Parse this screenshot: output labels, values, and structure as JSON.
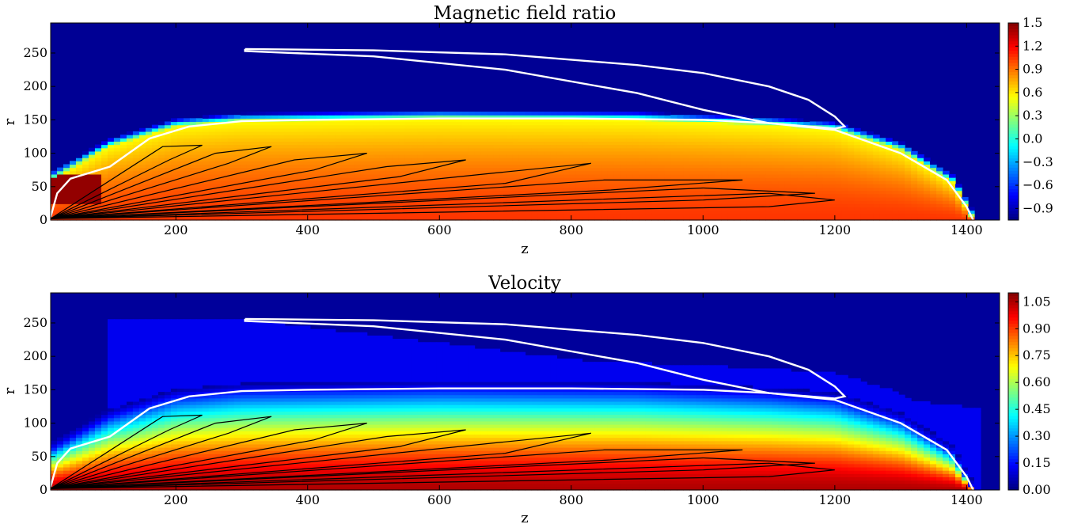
{
  "chart_data": [
    {
      "type": "heatmap",
      "title": "Magnetic field ratio",
      "xlabel": "z",
      "ylabel": "r",
      "xlim": [
        10,
        1450
      ],
      "ylim": [
        0,
        295
      ],
      "xticks": [
        200,
        400,
        600,
        800,
        1000,
        1200,
        1400
      ],
      "yticks": [
        0,
        50,
        100,
        150,
        200,
        250
      ],
      "colormap": "jet",
      "colorbar": {
        "min": -1.05,
        "max": 1.5,
        "ticks": [
          "1.5",
          "1.2",
          "0.9",
          "0.6",
          "0.3",
          "0.0",
          "−0.3",
          "−0.6",
          "−0.9"
        ],
        "tick_values": [
          1.5,
          1.2,
          0.9,
          0.6,
          0.3,
          0.0,
          -0.3,
          -0.6,
          -0.9
        ]
      },
      "field": {
        "background_value": -1.0,
        "core_value_axis": 1.05,
        "core_value_edge": 0.55,
        "hotspot_value": 1.45,
        "jet_radius": [
          [
            10,
            60
          ],
          [
            100,
            110
          ],
          [
            200,
            140
          ],
          [
            300,
            148
          ],
          [
            600,
            152
          ],
          [
            900,
            150
          ],
          [
            1100,
            142
          ],
          [
            1200,
            135
          ],
          [
            1300,
            105
          ],
          [
            1380,
            55
          ],
          [
            1410,
            0
          ]
        ]
      },
      "contours_white": [
        {
          "name": "outer",
          "points": [
            [
              10,
              5
            ],
            [
              20,
              40
            ],
            [
              40,
              62
            ],
            [
              100,
              80
            ],
            [
              160,
              122
            ],
            [
              220,
              140
            ],
            [
              300,
              148
            ],
            [
              400,
              150
            ],
            [
              600,
              152
            ],
            [
              800,
              152
            ],
            [
              1000,
              150
            ],
            [
              1100,
              145
            ],
            [
              1200,
              135
            ],
            [
              1300,
              100
            ],
            [
              1370,
              60
            ],
            [
              1400,
              20
            ],
            [
              1410,
              0
            ]
          ]
        },
        {
          "name": "upper-loop",
          "points": [
            [
              305,
              256
            ],
            [
              500,
              254
            ],
            [
              700,
              248
            ],
            [
              900,
              232
            ],
            [
              1000,
              220
            ],
            [
              1100,
              200
            ],
            [
              1160,
              180
            ],
            [
              1200,
              155
            ],
            [
              1215,
              140
            ],
            [
              1200,
              137
            ],
            [
              1100,
              145
            ],
            [
              1000,
              165
            ],
            [
              900,
              190
            ],
            [
              700,
              225
            ],
            [
              500,
              245
            ],
            [
              305,
              253
            ],
            [
              305,
              256
            ]
          ]
        }
      ],
      "contours_black": [
        {
          "points": [
            [
              10,
              2
            ],
            [
              180,
              110
            ],
            [
              240,
              112
            ],
            [
              190,
              90
            ],
            [
              10,
              2
            ]
          ]
        },
        {
          "points": [
            [
              10,
              2
            ],
            [
              260,
              100
            ],
            [
              345,
              110
            ],
            [
              280,
              85
            ],
            [
              10,
              2
            ]
          ]
        },
        {
          "points": [
            [
              10,
              2
            ],
            [
              380,
              90
            ],
            [
              490,
              100
            ],
            [
              410,
              75
            ],
            [
              10,
              2
            ]
          ]
        },
        {
          "points": [
            [
              10,
              2
            ],
            [
              520,
              80
            ],
            [
              640,
              90
            ],
            [
              540,
              65
            ],
            [
              10,
              2
            ]
          ]
        },
        {
          "points": [
            [
              10,
              2
            ],
            [
              680,
              70
            ],
            [
              830,
              85
            ],
            [
              700,
              55
            ],
            [
              10,
              2
            ]
          ]
        },
        {
          "points": [
            [
              10,
              2
            ],
            [
              850,
              60
            ],
            [
              1060,
              60
            ],
            [
              860,
              45
            ],
            [
              10,
              2
            ]
          ]
        },
        {
          "points": [
            [
              10,
              2
            ],
            [
              1000,
              48
            ],
            [
              1170,
              40
            ],
            [
              1000,
              30
            ],
            [
              10,
              2
            ]
          ]
        },
        {
          "points": [
            [
              10,
              2
            ],
            [
              1100,
              40
            ],
            [
              1200,
              30
            ],
            [
              1100,
              20
            ],
            [
              10,
              2
            ]
          ]
        }
      ]
    },
    {
      "type": "heatmap",
      "title": "Velocity",
      "xlabel": "z",
      "ylabel": "r",
      "xlim": [
        10,
        1450
      ],
      "ylim": [
        0,
        295
      ],
      "xticks": [
        200,
        400,
        600,
        800,
        1000,
        1200,
        1400
      ],
      "yticks": [
        0,
        50,
        100,
        150,
        200,
        250
      ],
      "colormap": "jet",
      "colorbar": {
        "min": 0.0,
        "max": 1.1,
        "ticks": [
          "1.05",
          "0.90",
          "0.75",
          "0.60",
          "0.45",
          "0.30",
          "0.15",
          "0.00"
        ],
        "tick_values": [
          1.05,
          0.9,
          0.75,
          0.6,
          0.45,
          0.3,
          0.15,
          0.0
        ]
      },
      "field": {
        "background_value": 0.03,
        "halo_value": 0.12,
        "core_value_axis": 1.05,
        "core_value_edge": 0.15,
        "jet_radius": [
          [
            10,
            60
          ],
          [
            100,
            110
          ],
          [
            200,
            140
          ],
          [
            300,
            148
          ],
          [
            600,
            152
          ],
          [
            900,
            150
          ],
          [
            1100,
            142
          ],
          [
            1200,
            135
          ],
          [
            1300,
            105
          ],
          [
            1380,
            55
          ],
          [
            1410,
            0
          ]
        ]
      },
      "contours_white": [
        {
          "name": "outer",
          "points": [
            [
              10,
              5
            ],
            [
              20,
              40
            ],
            [
              40,
              62
            ],
            [
              100,
              80
            ],
            [
              160,
              122
            ],
            [
              220,
              140
            ],
            [
              300,
              148
            ],
            [
              400,
              150
            ],
            [
              600,
              152
            ],
            [
              800,
              152
            ],
            [
              1000,
              150
            ],
            [
              1100,
              145
            ],
            [
              1200,
              135
            ],
            [
              1300,
              100
            ],
            [
              1370,
              60
            ],
            [
              1400,
              20
            ],
            [
              1410,
              0
            ]
          ]
        },
        {
          "name": "upper-loop",
          "points": [
            [
              305,
              256
            ],
            [
              500,
              254
            ],
            [
              700,
              248
            ],
            [
              900,
              232
            ],
            [
              1000,
              220
            ],
            [
              1100,
              200
            ],
            [
              1160,
              180
            ],
            [
              1200,
              155
            ],
            [
              1215,
              140
            ],
            [
              1200,
              137
            ],
            [
              1100,
              145
            ],
            [
              1000,
              165
            ],
            [
              900,
              190
            ],
            [
              700,
              225
            ],
            [
              500,
              245
            ],
            [
              305,
              253
            ],
            [
              305,
              256
            ]
          ]
        }
      ],
      "contours_black": [
        {
          "points": [
            [
              10,
              2
            ],
            [
              180,
              110
            ],
            [
              240,
              112
            ],
            [
              190,
              90
            ],
            [
              10,
              2
            ]
          ]
        },
        {
          "points": [
            [
              10,
              2
            ],
            [
              260,
              100
            ],
            [
              345,
              110
            ],
            [
              280,
              85
            ],
            [
              10,
              2
            ]
          ]
        },
        {
          "points": [
            [
              10,
              2
            ],
            [
              380,
              90
            ],
            [
              490,
              100
            ],
            [
              410,
              75
            ],
            [
              10,
              2
            ]
          ]
        },
        {
          "points": [
            [
              10,
              2
            ],
            [
              520,
              80
            ],
            [
              640,
              90
            ],
            [
              540,
              65
            ],
            [
              10,
              2
            ]
          ]
        },
        {
          "points": [
            [
              10,
              2
            ],
            [
              680,
              70
            ],
            [
              830,
              85
            ],
            [
              700,
              55
            ],
            [
              10,
              2
            ]
          ]
        },
        {
          "points": [
            [
              10,
              2
            ],
            [
              850,
              60
            ],
            [
              1060,
              60
            ],
            [
              860,
              45
            ],
            [
              10,
              2
            ]
          ]
        },
        {
          "points": [
            [
              10,
              2
            ],
            [
              1000,
              48
            ],
            [
              1170,
              40
            ],
            [
              1000,
              30
            ],
            [
              10,
              2
            ]
          ]
        },
        {
          "points": [
            [
              10,
              2
            ],
            [
              1100,
              40
            ],
            [
              1200,
              30
            ],
            [
              1100,
              20
            ],
            [
              10,
              2
            ]
          ]
        }
      ]
    }
  ]
}
